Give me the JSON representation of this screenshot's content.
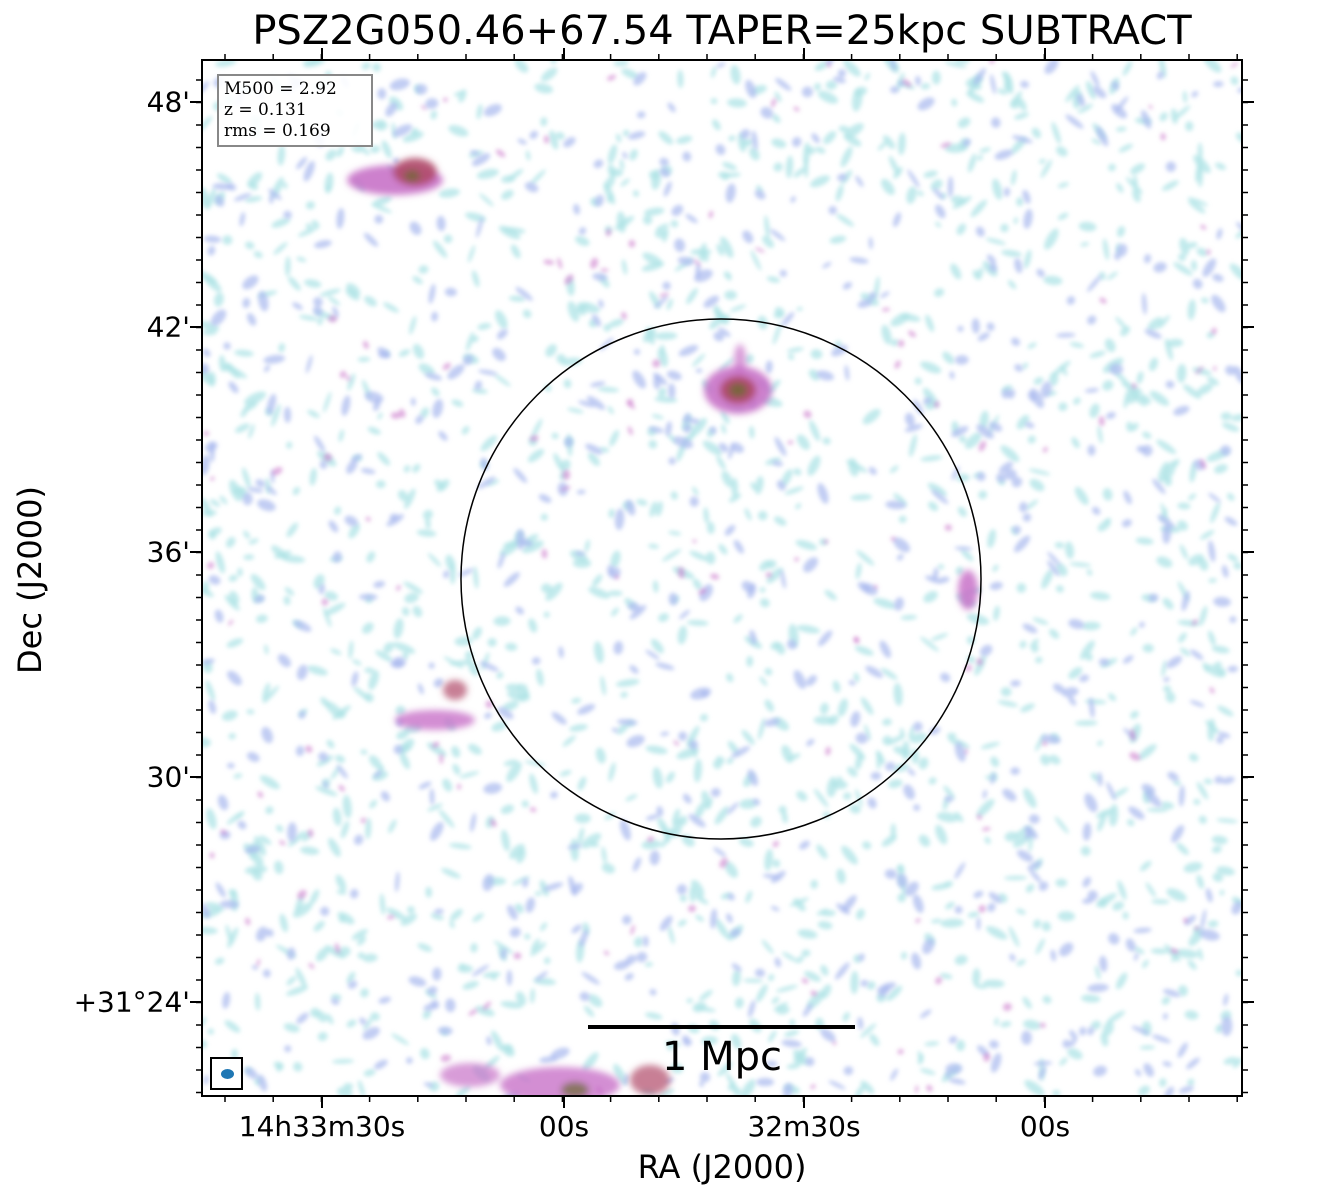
{
  "figure": {
    "title": "PSZ2G050.46+67.54 TAPER=25kpc SUBTRACT",
    "xlabel": "RA (J2000)",
    "ylabel": "Dec (J2000)",
    "x_ticks": [
      "14h33m30s",
      "00s",
      "32m30s",
      "00s"
    ],
    "y_ticks": [
      "48'",
      "42'",
      "36'",
      "30'",
      "+31°24'"
    ]
  },
  "infobox": {
    "m500": "M500 = 2.92",
    "z": "z = 0.131",
    "rms": "rms = 0.169"
  },
  "scalebar": {
    "label": "1 Mpc"
  },
  "colors": {
    "faint": "#aee3e6",
    "medium": "#a8b8ee",
    "bright": "#c872c8",
    "peak": "#b04a6a",
    "core": "#6b6b30",
    "beam": "#1f77b4"
  }
}
